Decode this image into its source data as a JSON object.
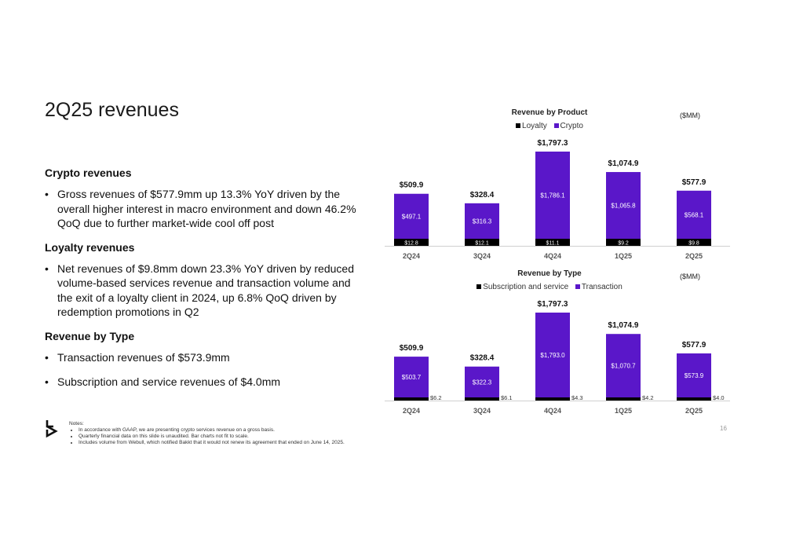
{
  "slide": {
    "title": "2Q25 revenues",
    "page_number": "16"
  },
  "sections": [
    {
      "heading": "Crypto revenues",
      "bullets": [
        "Gross revenues of $577.9mm up 13.3% YoY driven by the overall higher interest in macro environment and down 46.2% QoQ due to further market-wide cool off post"
      ]
    },
    {
      "heading": "Loyalty revenues",
      "bullets": [
        "Net revenues of $9.8mm down 23.3% YoY driven by reduced volume-based services revenue and transaction volume and the exit of a loyalty client in 2024, up 6.8% QoQ driven by redemption promotions in Q2"
      ]
    },
    {
      "heading": "Revenue by Type",
      "bullets": [
        "Transaction revenues of $573.9mm",
        "Subscription and service revenues of $4.0mm"
      ]
    }
  ],
  "notes": {
    "heading": "Notes:",
    "items": [
      "In accordance with GAAP, we are presenting crypto services revenue on a gross basis.",
      "Quarterly financial data on this slide is unaudited. Bar charts not fit to scale.",
      "Includes volume from Webull, which notified Bakkt that it would not renew its agreement that ended on June 14, 2025."
    ]
  },
  "colors": {
    "accent": "#5A17C9",
    "dark": "#000000"
  },
  "chart_data": [
    {
      "type": "bar",
      "stacked": true,
      "title": "Revenue by Product",
      "units": "($MM)",
      "legend_position": "top",
      "categories": [
        "2Q24",
        "3Q24",
        "4Q24",
        "1Q25",
        "2Q25"
      ],
      "series": [
        {
          "name": "Loyalty",
          "color": "#000000",
          "values": [
            12.8,
            12.1,
            11.1,
            9.2,
            9.8
          ],
          "labels": [
            "$12.8",
            "$12.1",
            "$11.1",
            "$9.2",
            "$9.8"
          ]
        },
        {
          "name": "Crypto",
          "color": "#5A17C9",
          "values": [
            497.1,
            316.3,
            1786.1,
            1065.8,
            568.1
          ],
          "labels": [
            "$497.1",
            "$316.3",
            "$1,786.1",
            "$1,065.8",
            "$568.1"
          ]
        }
      ],
      "totals": [
        "$509.9",
        "$328.4",
        "$1,797.3",
        "$1,074.9",
        "$577.9"
      ],
      "note": "Bar charts not fit to scale"
    },
    {
      "type": "bar",
      "stacked": true,
      "title": "Revenue by Type",
      "units": "($MM)",
      "legend_position": "top",
      "categories": [
        "2Q24",
        "3Q24",
        "4Q24",
        "1Q25",
        "2Q25"
      ],
      "series": [
        {
          "name": "Subscription and service",
          "color": "#000000",
          "values": [
            6.2,
            6.1,
            4.3,
            4.2,
            4.0
          ],
          "labels": [
            "$6.2",
            "$6.1",
            "$4.3",
            "$4.2",
            "$4.0"
          ]
        },
        {
          "name": "Transaction",
          "color": "#5A17C9",
          "values": [
            503.7,
            322.3,
            1793.0,
            1070.7,
            573.9
          ],
          "labels": [
            "$503.7",
            "$322.3",
            "$1,793.0",
            "$1,070.7",
            "$573.9"
          ]
        }
      ],
      "totals": [
        "$509.9",
        "$328.4",
        "$1,797.3",
        "$1,074.9",
        "$577.9"
      ],
      "note": "Bar charts not fit to scale"
    }
  ]
}
